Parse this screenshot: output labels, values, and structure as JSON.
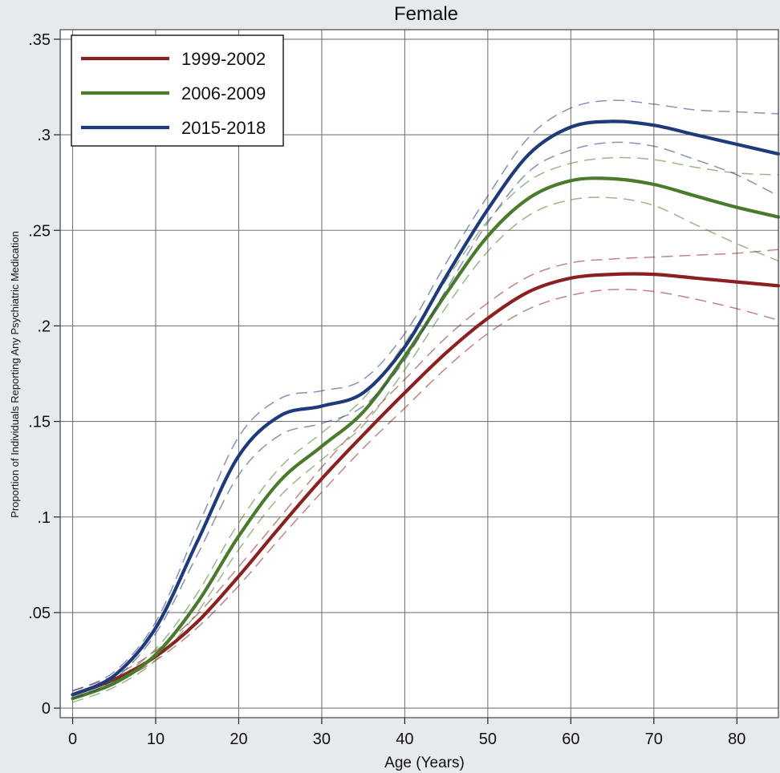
{
  "chart_data": {
    "type": "line",
    "title": "Female",
    "xlabel": "Age (Years)",
    "ylabel": "Proportion of Individuals Reporting Any Psychiatric Medication",
    "xlim": [
      -1.5,
      85
    ],
    "ylim": [
      -0.005,
      0.355
    ],
    "xticks": [
      0,
      10,
      20,
      30,
      40,
      50,
      60,
      70,
      80
    ],
    "xtick_labels": [
      "0",
      "10",
      "20",
      "30",
      "40",
      "50",
      "60",
      "70",
      "80"
    ],
    "yticks": [
      0,
      0.05,
      0.1,
      0.15,
      0.2,
      0.25,
      0.3,
      0.35
    ],
    "ytick_labels": [
      "0",
      ".05",
      ".1",
      ".15",
      ".2",
      ".25",
      ".3",
      ".35"
    ],
    "grid": true,
    "legend_position": "top-left",
    "x": [
      0,
      5,
      10,
      15,
      20,
      25,
      30,
      35,
      40,
      45,
      50,
      55,
      60,
      65,
      70,
      75,
      80,
      85
    ],
    "series": [
      {
        "name": "1999-2002",
        "color": "#8b2020",
        "values": [
          0.007,
          0.015,
          0.027,
          0.045,
          0.069,
          0.095,
          0.12,
          0.143,
          0.165,
          0.186,
          0.204,
          0.218,
          0.225,
          0.227,
          0.227,
          0.225,
          0.223,
          0.221
        ],
        "ci_lower": [
          0.005,
          0.013,
          0.025,
          0.042,
          0.064,
          0.089,
          0.113,
          0.136,
          0.157,
          0.178,
          0.196,
          0.209,
          0.216,
          0.219,
          0.218,
          0.214,
          0.209,
          0.203
        ],
        "ci_upper": [
          0.009,
          0.017,
          0.03,
          0.049,
          0.074,
          0.1,
          0.126,
          0.15,
          0.172,
          0.194,
          0.212,
          0.226,
          0.233,
          0.235,
          0.236,
          0.237,
          0.238,
          0.24
        ]
      },
      {
        "name": "2006-2009",
        "color": "#4a7a2c",
        "values": [
          0.005,
          0.013,
          0.028,
          0.055,
          0.09,
          0.119,
          0.137,
          0.155,
          0.184,
          0.217,
          0.247,
          0.267,
          0.276,
          0.277,
          0.274,
          0.268,
          0.262,
          0.257
        ],
        "ci_lower": [
          0.003,
          0.011,
          0.025,
          0.05,
          0.083,
          0.111,
          0.13,
          0.148,
          0.177,
          0.21,
          0.239,
          0.258,
          0.266,
          0.267,
          0.263,
          0.253,
          0.243,
          0.234
        ],
        "ci_upper": [
          0.007,
          0.015,
          0.031,
          0.06,
          0.097,
          0.126,
          0.144,
          0.162,
          0.191,
          0.224,
          0.255,
          0.276,
          0.285,
          0.288,
          0.287,
          0.283,
          0.28,
          0.279
        ]
      },
      {
        "name": "2015-2018",
        "color": "#1f3a7a",
        "values": [
          0.007,
          0.017,
          0.042,
          0.087,
          0.132,
          0.153,
          0.158,
          0.165,
          0.189,
          0.226,
          0.261,
          0.29,
          0.304,
          0.307,
          0.305,
          0.3,
          0.295,
          0.29
        ],
        "ci_lower": [
          0.005,
          0.015,
          0.039,
          0.08,
          0.122,
          0.143,
          0.149,
          0.158,
          0.182,
          0.219,
          0.254,
          0.281,
          0.292,
          0.296,
          0.294,
          0.287,
          0.279,
          0.268
        ],
        "ci_upper": [
          0.009,
          0.019,
          0.045,
          0.094,
          0.142,
          0.162,
          0.166,
          0.172,
          0.196,
          0.233,
          0.268,
          0.299,
          0.314,
          0.318,
          0.316,
          0.313,
          0.312,
          0.311
        ]
      }
    ]
  }
}
